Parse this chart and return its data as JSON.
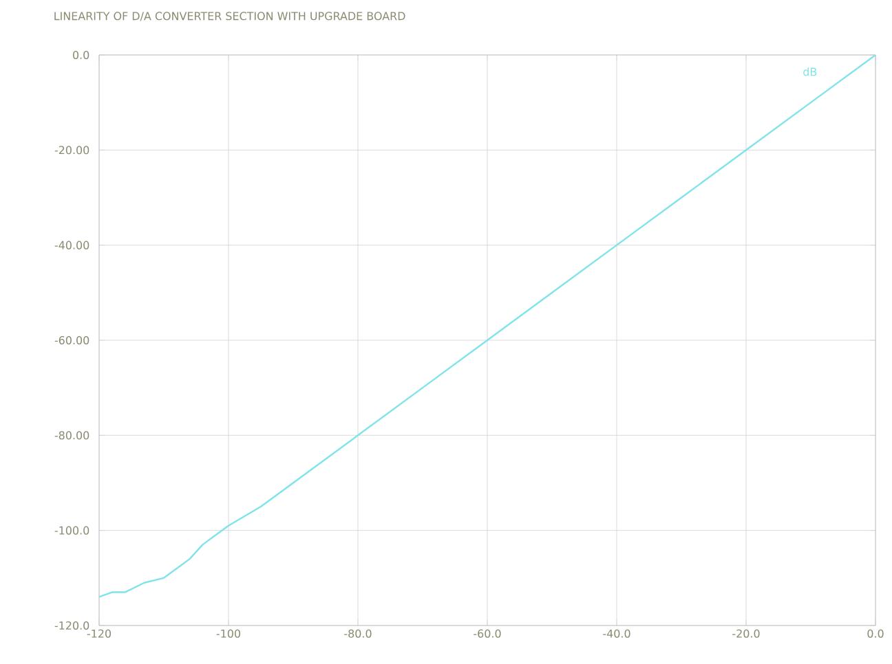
{
  "chart_data": {
    "type": "line",
    "title": "LINEARITY OF D/A CONVERTER SECTION WITH UPGRADE BOARD",
    "x": [
      -120,
      -118,
      -116,
      -113,
      -110,
      -108,
      -106,
      -104,
      -102,
      -100,
      -95,
      -90,
      -80,
      -70,
      -60,
      -50,
      -40,
      -30,
      -20,
      -10,
      0
    ],
    "series": [
      {
        "color": "#7fe3ea",
        "values": [
          -114,
          -113,
          -113,
          -111,
          -110,
          -108,
          -106,
          -103,
          -101,
          -99,
          -95,
          -90,
          -80,
          -70,
          -60,
          -50,
          -40,
          -30,
          -20,
          -10,
          0
        ]
      }
    ],
    "xlim": [
      -120,
      0
    ],
    "ylim": [
      -120,
      0
    ],
    "xticks": [
      -120,
      -100,
      {
        "value": -80,
        "label": "-80.0"
      },
      {
        "value": -60,
        "label": "-60.0"
      },
      {
        "value": -40,
        "label": "-40.0"
      },
      {
        "value": -20,
        "label": "-20.0"
      },
      {
        "value": 0,
        "label": "0.0"
      }
    ],
    "yticks": [
      {
        "value": -120,
        "label": "-120.0"
      },
      {
        "value": -100,
        "label": "-100.0"
      },
      {
        "value": -80,
        "label": "-80.00"
      },
      {
        "value": -60,
        "label": "-60.00"
      },
      {
        "value": -40,
        "label": "-40.00"
      },
      {
        "value": -20,
        "label": "-20.00"
      },
      {
        "value": 0,
        "label": "0.0"
      }
    ],
    "grid": true,
    "annotations": [
      "dB"
    ]
  }
}
